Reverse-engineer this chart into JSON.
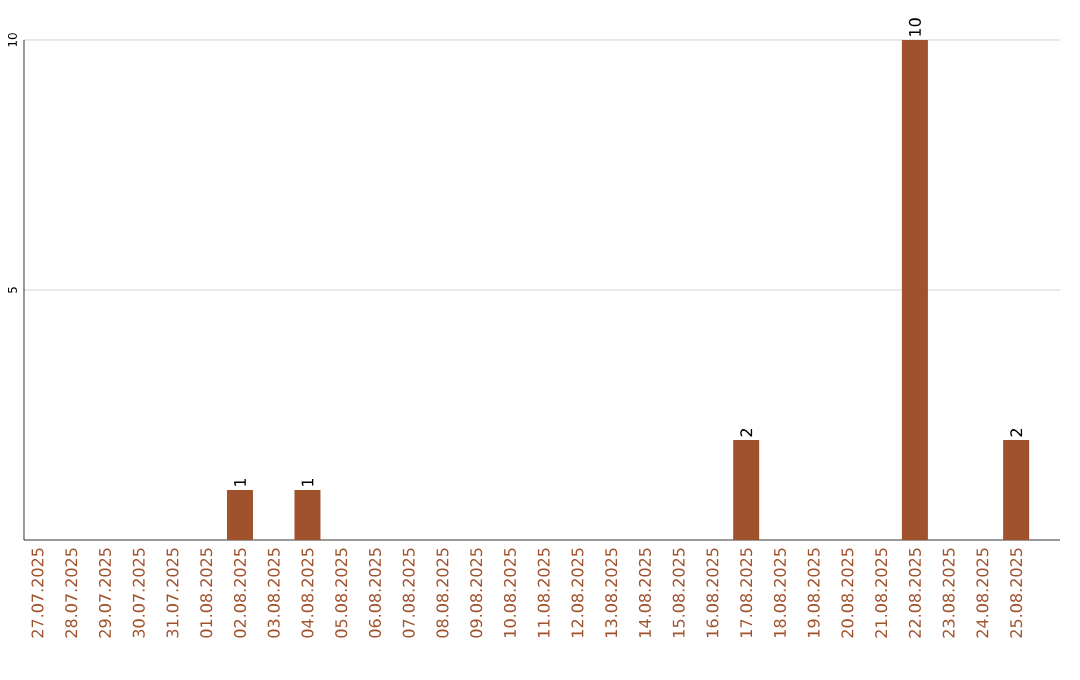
{
  "chart_data": {
    "type": "bar",
    "categories": [
      "27.07.2025",
      "28.07.2025",
      "29.07.2025",
      "30.07.2025",
      "31.07.2025",
      "01.08.2025",
      "02.08.2025",
      "03.08.2025",
      "04.08.2025",
      "05.08.2025",
      "06.08.2025",
      "07.08.2025",
      "08.08.2025",
      "09.08.2025",
      "10.08.2025",
      "11.08.2025",
      "12.08.2025",
      "13.08.2025",
      "14.08.2025",
      "15.08.2025",
      "16.08.2025",
      "17.08.2025",
      "18.08.2025",
      "19.08.2025",
      "20.08.2025",
      "21.08.2025",
      "22.08.2025",
      "23.08.2025",
      "24.08.2025",
      "25.08.2025"
    ],
    "values": [
      0,
      0,
      0,
      0,
      0,
      0,
      1,
      0,
      1,
      0,
      0,
      0,
      0,
      0,
      0,
      0,
      0,
      0,
      0,
      0,
      0,
      2,
      0,
      0,
      0,
      0,
      10,
      0,
      0,
      2
    ],
    "color": "#a0522d",
    "ylim": [
      0,
      10
    ],
    "yticks": [
      5,
      10
    ],
    "value_labels": [
      null,
      null,
      null,
      null,
      null,
      null,
      "1",
      null,
      "1",
      null,
      null,
      null,
      null,
      null,
      null,
      null,
      null,
      null,
      null,
      null,
      null,
      "2",
      null,
      null,
      null,
      null,
      "10",
      null,
      null,
      "2"
    ],
    "grid": "y"
  }
}
